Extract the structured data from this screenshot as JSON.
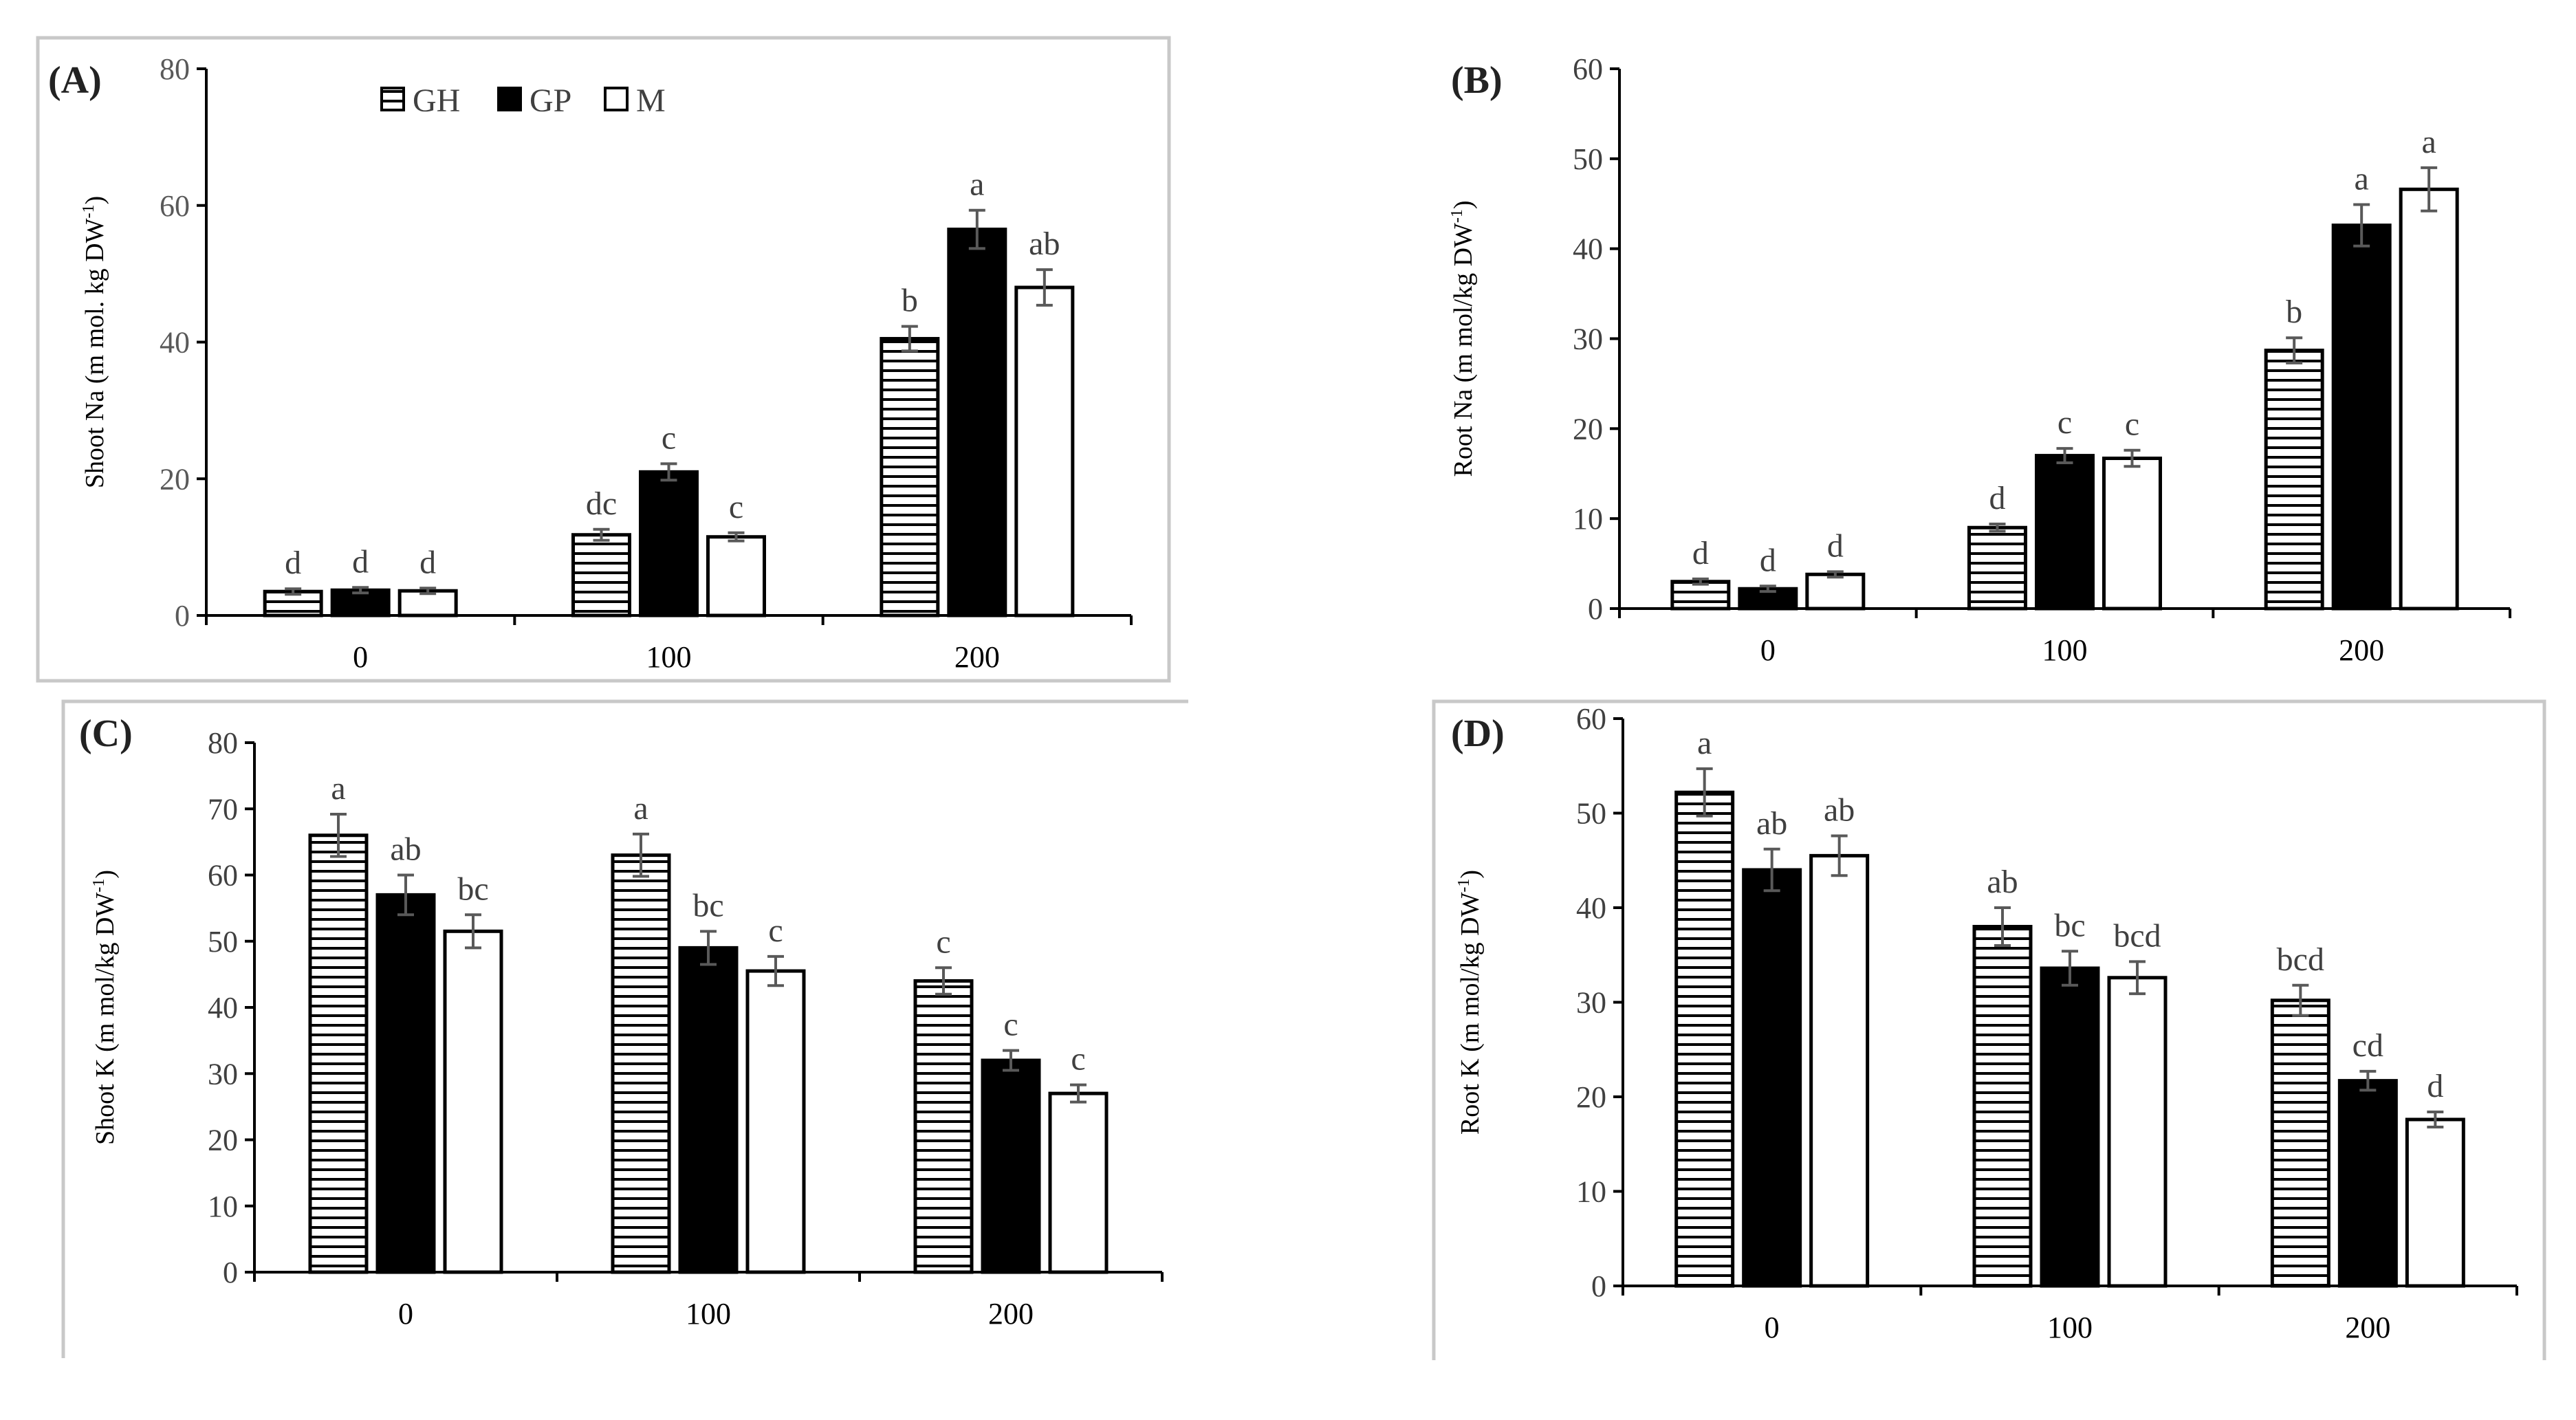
{
  "legend": {
    "entries": [
      "GH",
      "GP",
      "M"
    ]
  },
  "chart_data": [
    {
      "type": "bar",
      "panel_label": "(A)",
      "ylabel": "Shoot Na (m mol. kg DW-1)",
      "ylabel_main": "Shoot Na (m mol. kg DW",
      "ylabel_sup": "-1",
      "ylabel_end": ")",
      "xlabel": "",
      "ylim": [
        0,
        80
      ],
      "ytick_step": 20,
      "categories": [
        "0",
        "100",
        "200"
      ],
      "series": [
        {
          "name": "GH",
          "values": [
            3.5,
            11.8,
            40.5
          ],
          "errors": [
            0.4,
            0.8,
            1.8
          ],
          "letters": [
            "d",
            "dc",
            "b"
          ]
        },
        {
          "name": "GP",
          "values": [
            3.7,
            21.0,
            56.5
          ],
          "errors": [
            0.4,
            1.2,
            2.8
          ],
          "letters": [
            "d",
            "c",
            "a"
          ]
        },
        {
          "name": "M",
          "values": [
            3.6,
            11.5,
            48.0
          ],
          "errors": [
            0.4,
            0.6,
            2.6
          ],
          "letters": [
            "d",
            "c",
            "ab"
          ]
        }
      ]
    },
    {
      "type": "bar",
      "panel_label": "(B)",
      "ylabel": "Root Na (m mol/kg DW-1)",
      "ylabel_main": "Root Na (m mol/kg DW",
      "ylabel_sup": "-1",
      "ylabel_end": ")",
      "xlabel": "",
      "ylim": [
        0,
        60
      ],
      "ytick_step": 10,
      "categories": [
        "0",
        "100",
        "200"
      ],
      "series": [
        {
          "name": "GH",
          "values": [
            3.0,
            9.0,
            28.7
          ],
          "errors": [
            0.3,
            0.4,
            1.4
          ],
          "letters": [
            "d",
            "d",
            "b"
          ]
        },
        {
          "name": "GP",
          "values": [
            2.2,
            17.0,
            42.6
          ],
          "errors": [
            0.3,
            0.8,
            2.3
          ],
          "letters": [
            "d",
            "c",
            "a"
          ]
        },
        {
          "name": "M",
          "values": [
            3.8,
            16.7,
            46.6
          ],
          "errors": [
            0.3,
            0.9,
            2.4
          ],
          "letters": [
            "d",
            "c",
            "a"
          ]
        }
      ]
    },
    {
      "type": "bar",
      "panel_label": "(C)",
      "ylabel": "Shoot K (m mol/kg DW-1)",
      "ylabel_main": "Shoot K (m mol/kg DW",
      "ylabel_sup": "-1",
      "ylabel_end": ")",
      "xlabel": "",
      "ylim": [
        0,
        80
      ],
      "ytick_step": 10,
      "categories": [
        "0",
        "100",
        "200"
      ],
      "series": [
        {
          "name": "GH",
          "values": [
            66.0,
            63.0,
            44.0
          ],
          "errors": [
            3.2,
            3.2,
            2.0
          ],
          "letters": [
            "a",
            "a",
            "c"
          ]
        },
        {
          "name": "GP",
          "values": [
            57.0,
            49.0,
            32.0
          ],
          "errors": [
            3.0,
            2.5,
            1.5
          ],
          "letters": [
            "ab",
            "bc",
            "c"
          ]
        },
        {
          "name": "M",
          "values": [
            51.5,
            45.5,
            27.0
          ],
          "errors": [
            2.5,
            2.2,
            1.3
          ],
          "letters": [
            "bc",
            "c",
            "c"
          ]
        }
      ]
    },
    {
      "type": "bar",
      "panel_label": "(D)",
      "ylabel": "Root K (m mol/kg DW-1)",
      "ylabel_main": "Root K (m mol/kg DW",
      "ylabel_sup": "-1",
      "ylabel_end": ")",
      "xlabel": "",
      "ylim": [
        0,
        60
      ],
      "ytick_step": 10,
      "categories": [
        "0",
        "100",
        "200"
      ],
      "series": [
        {
          "name": "GH",
          "values": [
            52.2,
            38.0,
            30.2
          ],
          "errors": [
            2.5,
            2.0,
            1.6
          ],
          "letters": [
            "a",
            "ab",
            "bcd"
          ]
        },
        {
          "name": "GP",
          "values": [
            44.0,
            33.6,
            21.7
          ],
          "errors": [
            2.2,
            1.8,
            1.0
          ],
          "letters": [
            "ab",
            "bc",
            "cd"
          ]
        },
        {
          "name": "M",
          "values": [
            45.5,
            32.6,
            17.6
          ],
          "errors": [
            2.1,
            1.7,
            0.8
          ],
          "letters": [
            "ab",
            "bcd",
            "d"
          ]
        }
      ]
    }
  ]
}
